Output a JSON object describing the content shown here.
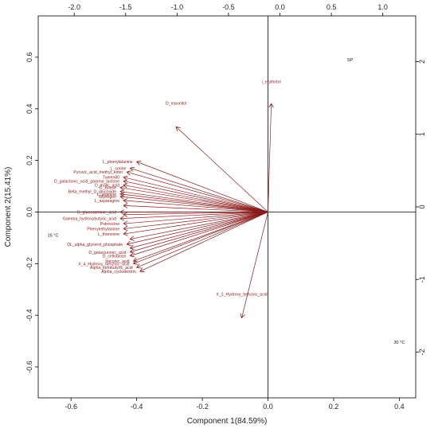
{
  "chart_data": {
    "type": "biplot",
    "xlabel": "Component 1(84.59%)",
    "ylabel": "Component 2(15.41%)",
    "xlim": [
      -0.7,
      0.45
    ],
    "ylim": [
      -0.72,
      0.76
    ],
    "x_ticks": [
      -0.6,
      -0.4,
      -0.2,
      0.0,
      0.2,
      0.4
    ],
    "y_ticks": [
      -0.6,
      -0.4,
      -0.2,
      0.0,
      0.2,
      0.4,
      0.6
    ],
    "top_ticks": [
      -2.0,
      -1.5,
      -1.0,
      -0.5,
      0.0,
      0.5,
      1.0
    ],
    "right_ticks": [
      -2,
      -1,
      0,
      1,
      2
    ],
    "top_scale": [
      -2.35,
      1.32
    ],
    "right_scale": [
      -2.63,
      2.63
    ],
    "observations": [
      {
        "label": "SP",
        "x": 0.25,
        "y": 0.585
      },
      {
        "label": "15 °C",
        "x": -0.655,
        "y": -0.095
      },
      {
        "label": "30 °C",
        "x": 0.4,
        "y": -0.51
      }
    ],
    "arrow_color": "#8b1a1a",
    "variables": [
      {
        "label": "i_erythritol",
        "x": 0.01,
        "y": 0.42
      },
      {
        "label": "D_mannitol",
        "x": -0.28,
        "y": 0.33
      },
      {
        "label": "X_2_Hydroxy_benzoic_acid",
        "x": -0.08,
        "y": -0.41
      },
      {
        "label": "L_phenylalanine",
        "x": -0.4,
        "y": 0.195
      },
      {
        "label": "L_serine",
        "x": -0.42,
        "y": 0.17
      },
      {
        "label": "Pyruvic_acid_methyl_ester",
        "x": -0.43,
        "y": 0.155
      },
      {
        "label": "Tween80",
        "x": -0.44,
        "y": 0.135
      },
      {
        "label": "D_galactonic_acid_gamma_lactone",
        "x": -0.44,
        "y": 0.12
      },
      {
        "label": "D_malic_acid",
        "x": -0.44,
        "y": 0.105
      },
      {
        "label": "D_xylose",
        "x": -0.45,
        "y": 0.095
      },
      {
        "label": "Beta_methyl_D_glucoside",
        "x": -0.45,
        "y": 0.08
      },
      {
        "label": "L_arginine",
        "x": -0.45,
        "y": 0.07
      },
      {
        "label": "Glycogen",
        "x": -0.45,
        "y": 0.06
      },
      {
        "label": "L_asparagine",
        "x": -0.44,
        "y": 0.045
      },
      {
        "label": "D_glucosaminic_acid",
        "x": -0.45,
        "y": 0.0
      },
      {
        "label": "Gamma_hydroxybutyric_acid",
        "x": -0.45,
        "y": -0.025
      },
      {
        "label": "Putrescine",
        "x": -0.44,
        "y": -0.045
      },
      {
        "label": "Phenylethylamine",
        "x": -0.44,
        "y": -0.065
      },
      {
        "label": "L_threonine",
        "x": -0.44,
        "y": -0.085
      },
      {
        "label": "DL_alpha_glycerol_phosphate",
        "x": -0.43,
        "y": -0.125
      },
      {
        "label": "D_galacturonic_acid",
        "x": -0.42,
        "y": -0.155
      },
      {
        "label": "D_cellobiose",
        "x": -0.42,
        "y": -0.17
      },
      {
        "label": "Itaconic_acid",
        "x": -0.41,
        "y": -0.19
      },
      {
        "label": "X_4_Hydroxy_benzoic_acid",
        "x": -0.41,
        "y": -0.2
      },
      {
        "label": "Alpha_ketobutyric_acid",
        "x": -0.4,
        "y": -0.215
      },
      {
        "label": "Alpha_cyclodextrin",
        "x": -0.39,
        "y": -0.23
      }
    ],
    "unlabeled_arrows": [
      {
        "x": -0.44,
        "y": 0.025
      },
      {
        "x": -0.44,
        "y": -0.01
      },
      {
        "x": -0.42,
        "y": -0.105
      },
      {
        "x": -0.42,
        "y": -0.14
      }
    ]
  }
}
